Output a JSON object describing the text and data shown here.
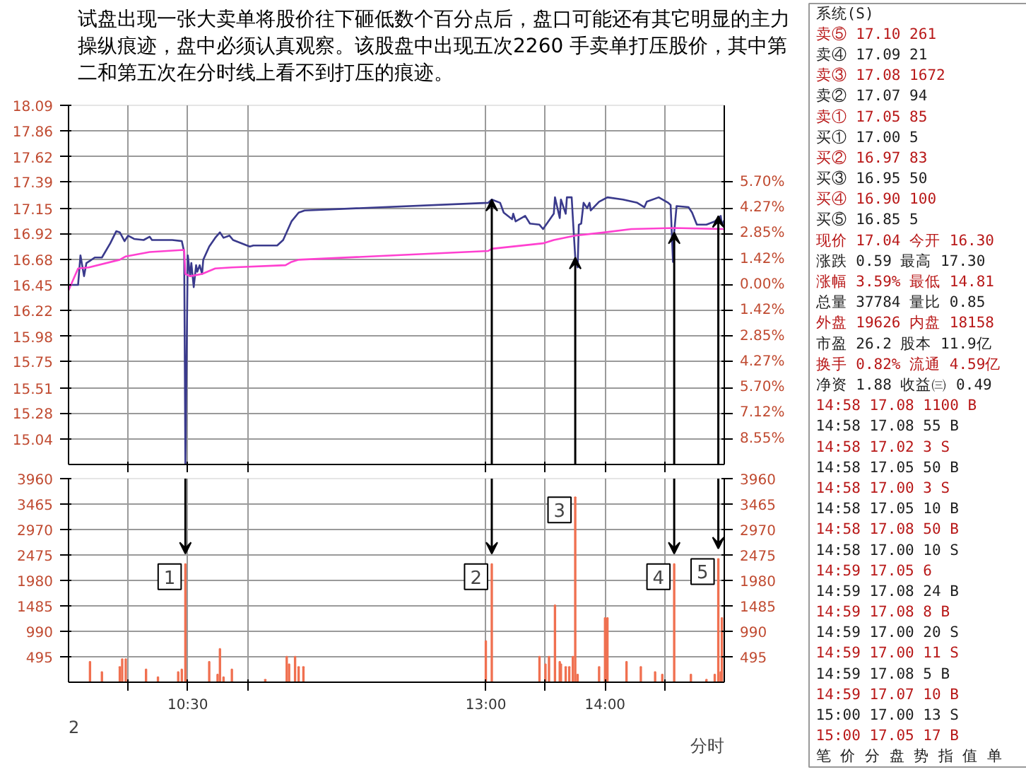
{
  "chart_data": [
    {
      "type": "line",
      "title": "试盘出现一张大卖单将股价往下砸低数个百分点后，盘口可能还有其它明显的主力操纵痕迹，盘中必须认真观察。该股盘中出现五次2260 手卖单打压股价，其中第二和第五次在分时线上看不到打压的痕迹。",
      "series": [
        {
          "color": "#3a3a8c",
          "x": [
            9.5,
            9.58,
            9.6,
            9.63,
            9.65,
            9.68,
            9.72,
            9.78,
            9.85,
            9.9,
            9.93,
            9.97,
            10.0,
            10.05,
            10.13,
            10.18,
            10.2,
            10.37,
            10.45,
            10.47,
            10.48,
            10.5,
            10.52,
            10.53,
            10.55,
            10.57,
            10.58,
            10.6,
            10.62,
            10.63,
            10.68,
            10.73,
            10.77,
            10.8,
            10.85,
            10.88,
            11.02,
            11.05,
            11.17,
            11.25,
            11.3,
            11.37,
            11.43,
            11.48,
            13.02,
            13.03,
            13.05,
            13.12,
            13.15,
            13.22,
            13.23,
            13.25,
            13.33,
            13.37,
            13.45,
            13.48,
            13.57,
            13.58,
            13.62,
            13.63,
            13.67,
            13.68,
            13.72,
            13.73,
            13.75,
            13.77,
            13.78,
            13.8,
            13.82,
            13.85,
            13.87,
            13.88,
            13.95,
            14.02,
            14.15,
            14.27,
            14.33,
            14.35,
            14.45,
            14.53,
            14.55,
            14.57,
            14.58,
            14.6,
            14.7,
            14.73,
            14.77,
            14.85,
            14.92,
            14.97,
            14.98,
            15.0
          ],
          "values": [
            16.45,
            16.45,
            16.72,
            16.53,
            16.65,
            16.67,
            16.7,
            16.7,
            16.83,
            16.94,
            16.93,
            16.85,
            16.9,
            16.87,
            16.86,
            16.89,
            16.86,
            16.86,
            16.85,
            16.75,
            14.81,
            16.72,
            16.53,
            16.65,
            16.43,
            16.63,
            16.57,
            16.63,
            16.55,
            16.68,
            16.8,
            16.88,
            16.93,
            16.88,
            16.9,
            16.86,
            16.8,
            16.81,
            16.81,
            16.81,
            16.86,
            17.03,
            17.11,
            17.13,
            17.2,
            17.21,
            17.23,
            17.2,
            17.11,
            17.05,
            17.1,
            17.03,
            17.08,
            17.01,
            17.0,
            16.96,
            17.1,
            17.25,
            17.06,
            17.23,
            17.1,
            17.25,
            17.25,
            17.06,
            16.7,
            16.61,
            17.0,
            17.01,
            17.2,
            17.15,
            17.2,
            17.13,
            17.21,
            17.25,
            17.23,
            17.2,
            17.16,
            17.21,
            17.25,
            17.2,
            17.18,
            16.66,
            16.93,
            17.17,
            17.16,
            17.11,
            17.0,
            17.0,
            17.03,
            17.08,
            17.0,
            17.04
          ]
        },
        {
          "color": "#ff40d0",
          "x": [
            9.5,
            9.58,
            9.67,
            9.93,
            9.98,
            10.18,
            10.47,
            10.48,
            10.52,
            10.62,
            10.73,
            10.87,
            11.32,
            11.37,
            11.43,
            13.02,
            13.05,
            13.48,
            13.57,
            13.75,
            14.0,
            14.22,
            14.58,
            15.0
          ],
          "values": [
            16.4,
            16.6,
            16.61,
            16.68,
            16.71,
            16.75,
            16.77,
            16.55,
            16.53,
            16.55,
            16.6,
            16.61,
            16.63,
            16.66,
            16.68,
            16.76,
            16.78,
            16.83,
            16.86,
            16.9,
            16.93,
            16.96,
            16.97,
            16.96
          ]
        }
      ],
      "xlim": [
        9.5,
        15.0
      ],
      "xticks": [
        {
          "value": 10.0,
          "label": null
        },
        {
          "value": 10.5,
          "label": null
        },
        {
          "value": 11.0,
          "label": null
        },
        {
          "value": 13.0,
          "label": null
        },
        {
          "value": 13.5,
          "label": null
        },
        {
          "value": 14.0,
          "label": null
        },
        {
          "value": 14.5,
          "label": null
        }
      ],
      "ylim": [
        14.81,
        18.09
      ],
      "yticks": [
        18.09,
        17.86,
        17.62,
        17.39,
        17.15,
        16.92,
        16.68,
        16.45,
        16.22,
        15.98,
        15.75,
        15.51,
        15.28,
        15.04
      ],
      "y2lim": [
        -9.97,
        9.97
      ],
      "y2ticks": [
        {
          "value": 5.7,
          "label": "5.70%"
        },
        {
          "value": 4.27,
          "label": "4.27%"
        },
        {
          "value": 2.85,
          "label": "2.85%"
        },
        {
          "value": 1.42,
          "label": "1.42%"
        },
        {
          "value": 0,
          "label": "0.00%"
        },
        {
          "value": -1.42,
          "label": "1.42%"
        },
        {
          "value": -2.85,
          "label": "2.85%"
        },
        {
          "value": -4.27,
          "label": "4.27%"
        },
        {
          "value": -5.7,
          "label": "5.70%"
        },
        {
          "value": -7.12,
          "label": "7.12%"
        },
        {
          "value": -8.55,
          "label": "8.55%"
        }
      ],
      "grid": true,
      "tick_labels": "y"
    },
    {
      "type": "bar",
      "color": "#f07050",
      "x": [
        9.68,
        9.78,
        9.93,
        9.95,
        9.98,
        10.15,
        10.25,
        10.42,
        10.45,
        10.48,
        10.68,
        10.75,
        10.77,
        10.8,
        10.87,
        11.15,
        11.33,
        11.35,
        11.4,
        11.43,
        11.47,
        13.0,
        13.05,
        13.45,
        13.5,
        13.53,
        13.58,
        13.62,
        13.63,
        13.67,
        13.7,
        13.73,
        13.75,
        13.77,
        13.95,
        14.0,
        14.02,
        14.18,
        14.3,
        14.42,
        14.48,
        14.58,
        14.72,
        14.85,
        14.92,
        14.95,
        14.97,
        14.98
      ],
      "values": [
        400,
        200,
        300,
        450,
        450,
        250,
        100,
        200,
        250,
        2300,
        400,
        150,
        650,
        100,
        250,
        50,
        500,
        350,
        500,
        300,
        300,
        800,
        2300,
        500,
        350,
        500,
        1500,
        400,
        350,
        300,
        300,
        500,
        3600,
        150,
        300,
        1250,
        1250,
        400,
        300,
        200,
        150,
        2300,
        150,
        50,
        150,
        2400,
        200,
        1250
      ],
      "xlim": [
        9.5,
        15.0
      ],
      "xticks": [
        {
          "value": 10.0,
          "label": null
        },
        {
          "value": 10.5,
          "label": "10:30"
        },
        {
          "value": 11.0,
          "label": null
        },
        {
          "value": 13.0,
          "label": "13:00"
        },
        {
          "value": 13.5,
          "label": null
        },
        {
          "value": 14.0,
          "label": "14:00"
        },
        {
          "value": 14.5,
          "label": null
        }
      ],
      "ylim": [
        0,
        3960
      ],
      "yticks": [
        495,
        990,
        1485,
        1980,
        2475,
        2970,
        3465,
        3960
      ],
      "y2lim": [
        0,
        3960
      ],
      "y2ticks": [
        495,
        990,
        1485,
        1980,
        2475,
        2970,
        3465,
        3960
      ],
      "grid": true,
      "annotations": [
        "2",
        "分时",
        {
          "text": "1",
          "x": 10.48,
          "y": 2300
        },
        {
          "text": "2",
          "x": 13.05,
          "y": 2300
        },
        {
          "text": "3",
          "x": 13.75,
          "y": 3600
        },
        {
          "text": "4",
          "x": 14.58,
          "y": 2300
        },
        {
          "text": "5",
          "x": 14.95,
          "y": 2400
        }
      ]
    },
    {
      "type": "other",
      "annotations": [
        "系统(S)",
        "卖⑤ 17.10 261",
        "卖④ 17.09 21",
        "卖③ 17.08 1672",
        "卖② 17.07 94",
        "卖① 17.05 85",
        "买① 17.00 5",
        "买② 16.97 83",
        "买③ 16.95 50",
        "买④ 16.90 100",
        "买⑤ 16.85 5",
        "现价 17.04 今开 16.30",
        "涨跌 0.59 最高 17.30",
        "涨幅 3.59% 最低 14.81",
        "总量 37784 量比 0.85",
        "外盘 19626 内盘 18158",
        "市盈 26.2 股本 11.9亿",
        "换手 0.82% 流通 4.59亿",
        "净资 1.88 收益㈢ 0.49",
        "14:58 17.08 1100 B",
        "14:58 17.08 55 B",
        "14:58 17.02 3 S",
        "14:58 17.05 50 B",
        "14:58 17.00 3 S",
        "14:58 17.05 10 B",
        "14:58 17.08 50 B",
        "14:58 17.00 10 S",
        "14:59 17.05 6",
        "14:59 17.08 24 B",
        "14:59 17.08 8 B",
        "14:59 17.00 20 S",
        "14:59 17.00 11 S",
        "14:59 17.08 5 B",
        "14:59 17.07 10 B",
        "15:00 17.00 13 S",
        "15:00 17.05 17 B",
        "笔 价 分 盘 势 指 值 单"
      ]
    }
  ]
}
